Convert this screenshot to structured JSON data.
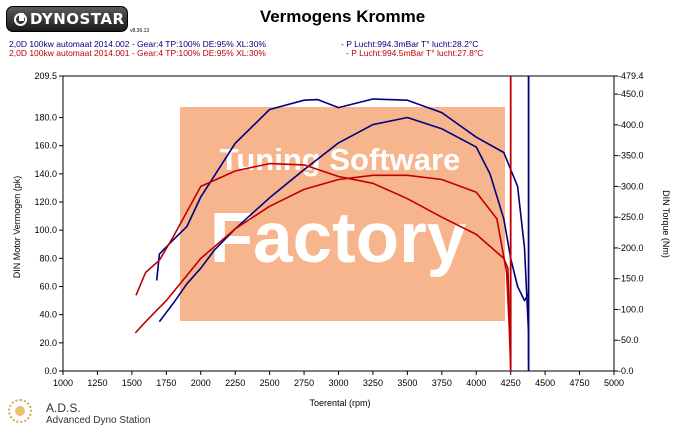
{
  "header": {
    "logo_text": "DYNOSTAR",
    "logo_subtext": "v8.36.13",
    "title": "Vermogens Kromme"
  },
  "runs": [
    {
      "name": "2,0D 100kw automaat 2014.002 - Gear:4 TP:100% DE:95% XL:30%",
      "conditions": "- P Lucht:994.3mBar T° lucht:28.2°C",
      "color": "#000080"
    },
    {
      "name": "2,0D 100kw automaat 2014.001 - Gear:4 TP:100% DE:95% XL:30%",
      "conditions": "- P Lucht:994.5mBar T° lucht:27.8°C",
      "color": "#c00000"
    }
  ],
  "watermark": {
    "line1": "Tuning Software",
    "line2": "Factory",
    "color": "#f4a878"
  },
  "footer": {
    "brand_short": "A.D.S.",
    "brand_full": "Advanced Dyno Station"
  },
  "chart_data": {
    "type": "line",
    "xlabel": "Toerental (rpm)",
    "ylabel_left": "DIN Motor Vermogen (pk)",
    "ylabel_right": "DIN Torque (Nm)",
    "x_ticks": [
      "1000",
      "1250",
      "1500",
      "1750",
      "2000",
      "2250",
      "2500",
      "2750",
      "3000",
      "3250",
      "3500",
      "3750",
      "4000",
      "4250",
      "4500",
      "4750",
      "5000"
    ],
    "xlim": [
      1000,
      5000
    ],
    "ylim_left": [
      0,
      209.5
    ],
    "left_ticks": [
      "0.0",
      "20.0",
      "40.0",
      "60.0",
      "80.0",
      "100.0",
      "120.0",
      "140.0",
      "160.0",
      "180.0",
      "209.5"
    ],
    "left_tick_values": [
      0,
      20,
      40,
      60,
      80,
      100,
      120,
      140,
      160,
      180,
      209.5
    ],
    "ylim_right": [
      -0.0,
      479.4
    ],
    "right_ticks": [
      "-0.0",
      "-50.0",
      "-100.0",
      "-150.0",
      "-200.0",
      "-250.0",
      "-300.0",
      "-350.0",
      "-400.0",
      "-450.0",
      "-479.4"
    ],
    "right_tick_values": [
      0,
      50,
      100,
      150,
      200,
      250,
      300,
      350,
      400,
      450,
      479.4
    ],
    "grid": false,
    "series": [
      {
        "name": "2,0D 100kw automaat 2014.002",
        "quantity": "power",
        "axis": "left",
        "color": "#000080",
        "x": [
          1700,
          1800,
          1900,
          2000,
          2100,
          2250,
          2500,
          2750,
          3000,
          3250,
          3500,
          3750,
          4000,
          4100,
          4200,
          4250,
          4300,
          4350,
          4380
        ],
        "y": [
          35,
          48,
          62,
          73,
          86,
          101,
          123,
          143,
          162,
          175,
          180,
          172,
          159,
          140,
          108,
          80,
          60,
          50,
          55
        ]
      },
      {
        "name": "2,0D 100kw automaat 2014.002",
        "quantity": "torque",
        "axis": "right",
        "color": "#000080",
        "x": [
          1680,
          1700,
          1800,
          1900,
          2000,
          2250,
          2500,
          2750,
          2850,
          3000,
          3250,
          3500,
          3750,
          4000,
          4200,
          4300,
          4350,
          4380,
          4380
        ],
        "y": [
          147,
          190,
          213,
          235,
          283,
          370,
          425,
          440,
          441,
          428,
          442,
          440,
          420,
          380,
          355,
          300,
          200,
          60,
          20
        ]
      },
      {
        "name": "2,0D 100kw automaat 2014.001",
        "quantity": "power",
        "axis": "left",
        "color": "#c00000",
        "x": [
          1525,
          1600,
          1750,
          2000,
          2250,
          2500,
          2750,
          3000,
          3250,
          3500,
          3750,
          4000,
          4150,
          4220,
          4240,
          4250
        ],
        "y": [
          27,
          35,
          50,
          80,
          101,
          117,
          129,
          136,
          139,
          139,
          136,
          127,
          108,
          70,
          30,
          1
        ]
      },
      {
        "name": "2,0D 100kw automaat 2014.001",
        "quantity": "torque",
        "axis": "right",
        "color": "#c00000",
        "x": [
          1530,
          1600,
          1700,
          1800,
          2000,
          2250,
          2500,
          2750,
          3000,
          3250,
          3500,
          3750,
          4000,
          4200,
          4230,
          4250,
          4250
        ],
        "y": [
          123,
          160,
          180,
          218,
          300,
          325,
          337,
          335,
          316,
          305,
          280,
          250,
          222,
          183,
          167,
          20,
          200
        ]
      }
    ]
  }
}
